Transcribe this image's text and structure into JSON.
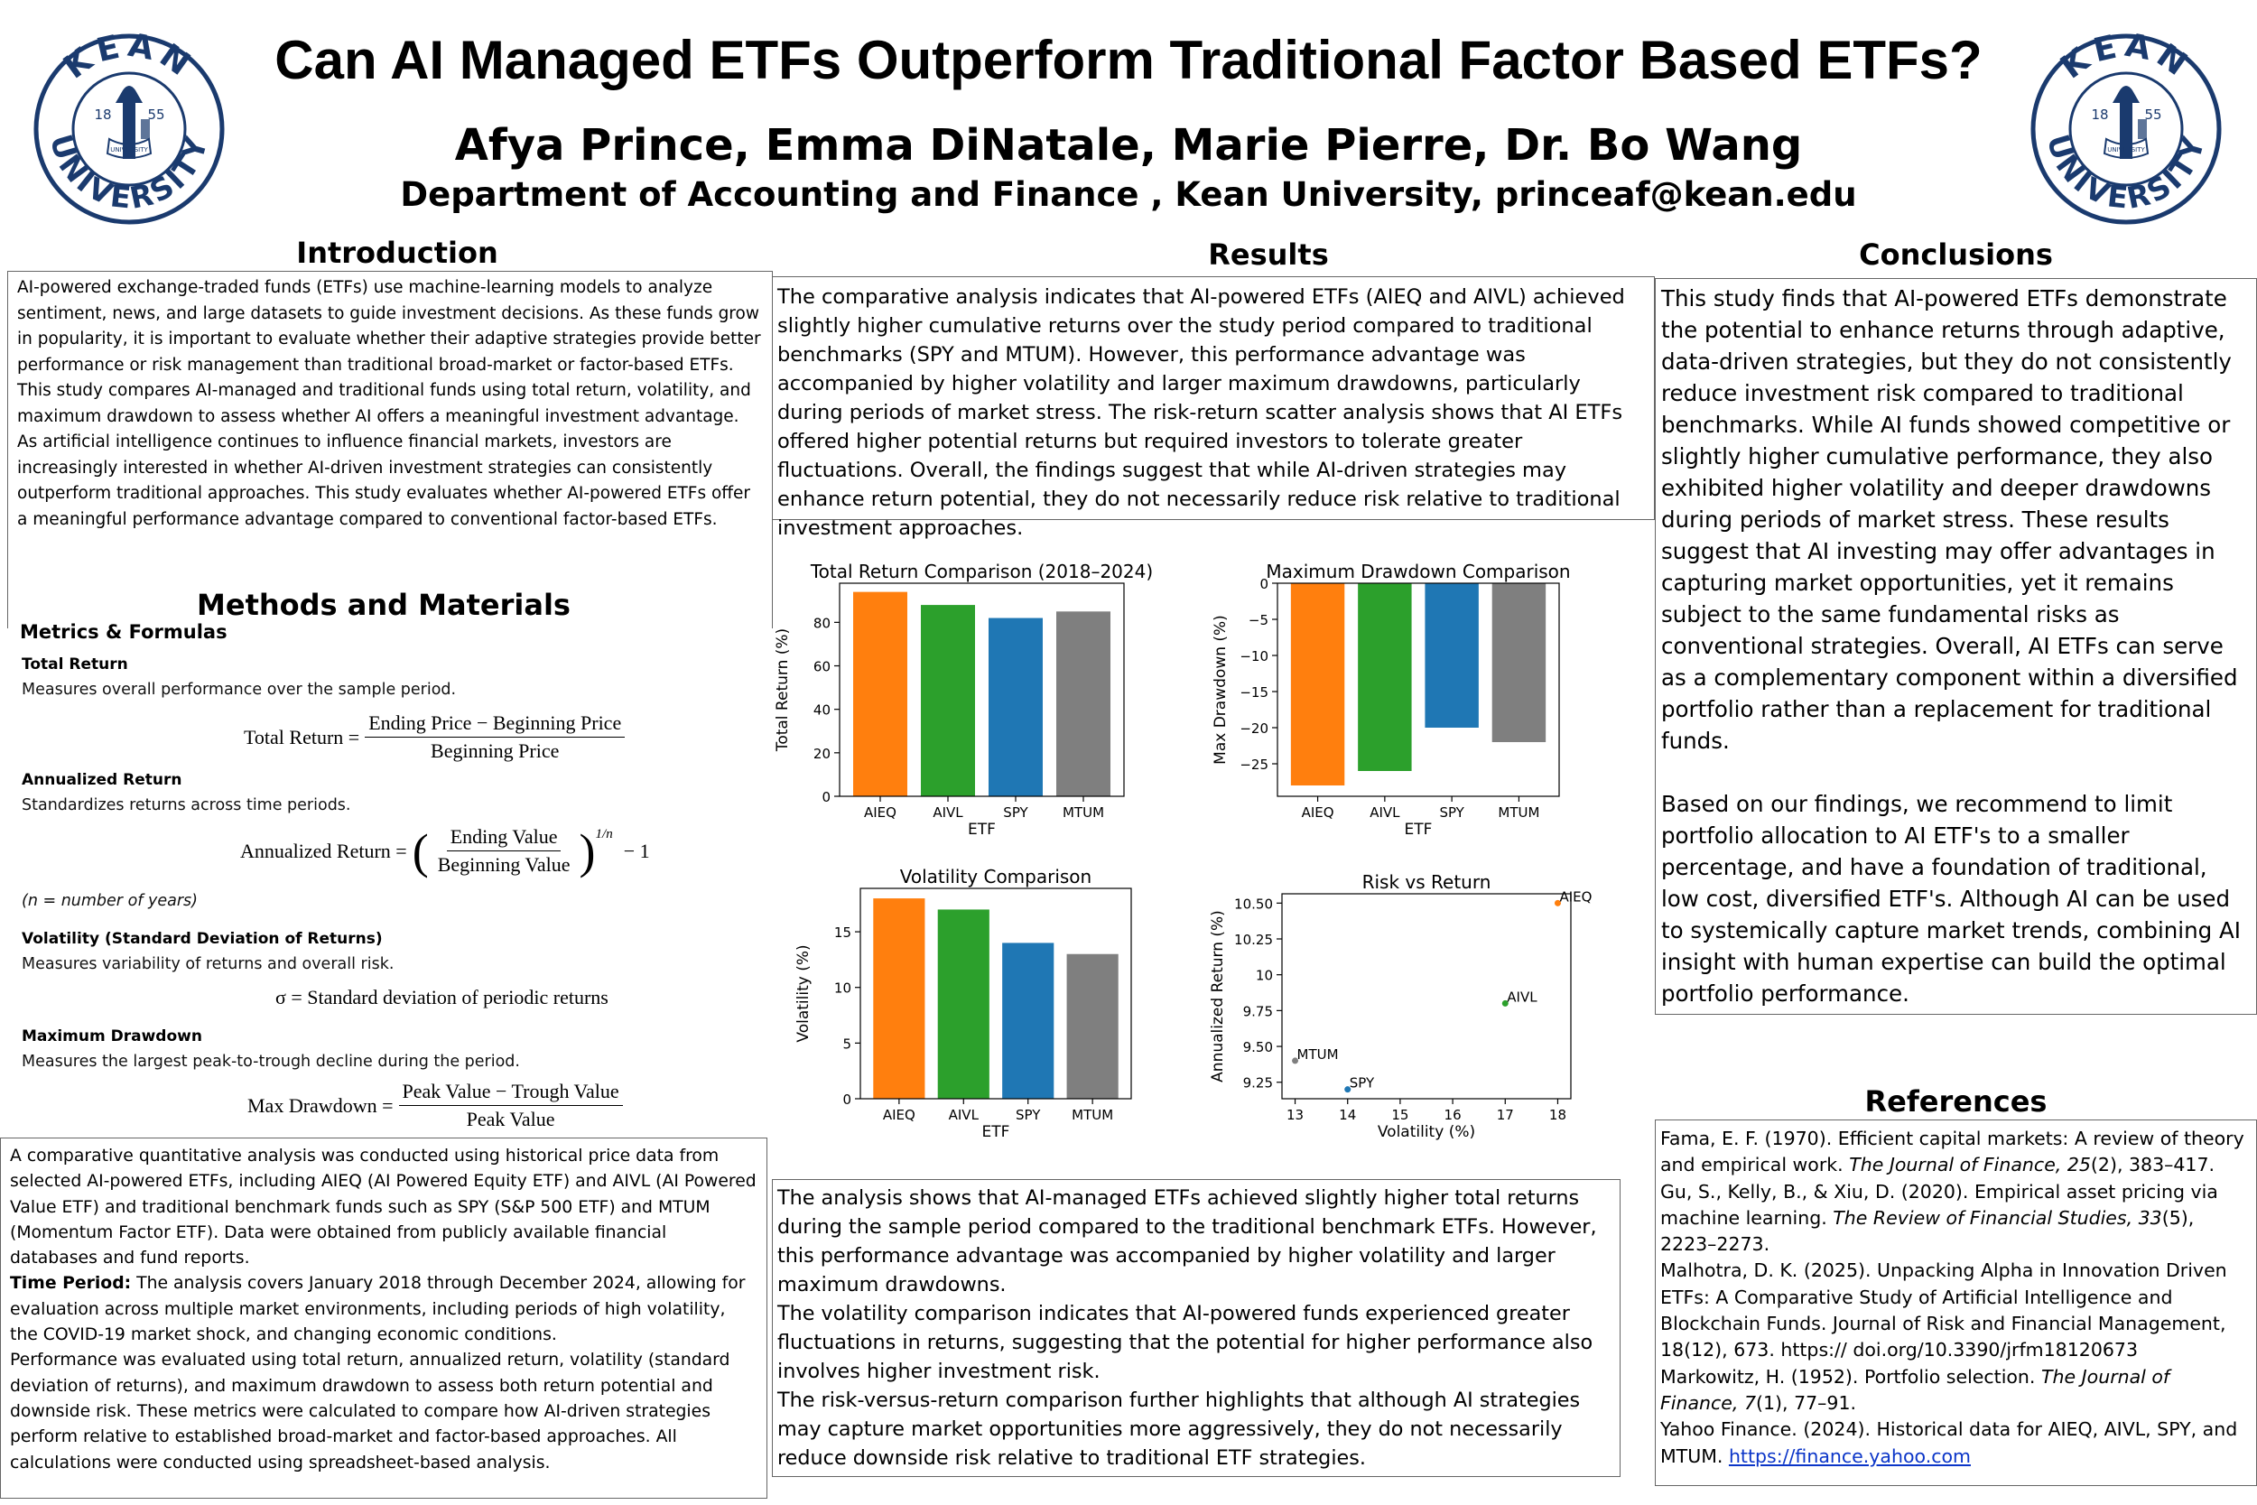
{
  "header": {
    "title": "Can AI Managed ETFs Outperform Traditional Factor Based ETFs?",
    "authors": "Afya Prince,  Emma DiNatale, Marie Pierre, Dr. Bo Wang",
    "affiliation": "Department of Accounting and Finance , Kean University, princeaf@kean.edu",
    "logo": {
      "top": "KEAN",
      "bottom": "UNIVERSITY",
      "year_left": "18",
      "year_right": "55",
      "ribbon": "UNIVERSITY",
      "color": "#1a3a6e"
    }
  },
  "introduction": {
    "title": "Introduction",
    "text": "AI-powered exchange-traded funds (ETFs) use machine-learning models to analyze sentiment, news, and large datasets to guide investment decisions. As these funds grow in popularity, it is important to evaluate whether their adaptive strategies provide better performance or risk management than traditional broad-market or factor-based ETFs. This study compares AI-managed and traditional funds using total return, volatility, and maximum drawdown to assess whether AI offers a meaningful investment advantage.  As artificial intelligence continues to influence financial markets, investors are increasingly interested in whether AI-driven investment strategies can consistently outperform traditional approaches. This study evaluates whether AI-powered ETFs offer a meaningful performance advantage compared to conventional factor-based ETFs."
  },
  "methods": {
    "title": "Methods and Materials",
    "metrics_heading": "Metrics & Formulas",
    "total_return": {
      "heading": "Total Return",
      "desc": "Measures overall performance over the sample period.",
      "lhs": "Total Return =",
      "num": "Ending Price − Beginning Price",
      "den": "Beginning Price"
    },
    "annualized": {
      "heading": "Annualized Return",
      "desc": "Standardizes returns across time periods.",
      "lhs": "Annualized Return =",
      "num": "Ending Value",
      "den": "Beginning Value",
      "exp": "1/n",
      "tail": "− 1",
      "note": "(n = number of years)"
    },
    "volatility": {
      "heading": "Volatility (Standard Deviation of Returns)",
      "desc": "Measures variability of returns and overall risk.",
      "eq": "σ = Standard deviation of periodic returns"
    },
    "drawdown": {
      "heading": "Maximum Drawdown",
      "desc": "Measures the largest peak-to-trough decline during the period.",
      "lhs": "Max Drawdown =",
      "num": "Peak Value − Trough Value",
      "den": "Peak Value"
    },
    "p1": "A comparative quantitative analysis was conducted using historical price data from selected AI-powered ETFs, including AIEQ (AI Powered Equity ETF) and AIVL (AI Powered Value ETF) and traditional benchmark funds such as SPY (S&P 500 ETF) and MTUM (Momentum Factor ETF). Data were obtained from publicly available financial databases and fund reports.",
    "time_label": "Time Period:",
    "p2": " The analysis covers January 2018 through December 2024, allowing for evaluation across multiple market environments, including periods of high volatility, the COVID-19 market shock, and changing economic conditions.",
    "p3": "Performance was evaluated using total return, annualized return, volatility (standard deviation of returns), and maximum drawdown to assess both return potential and downside risk. These metrics were calculated to compare how AI-driven strategies perform relative to established broad-market and factor-based approaches. All calculations were conducted using spreadsheet-based analysis."
  },
  "results": {
    "title": "Results",
    "text_top": "The comparative analysis indicates that AI-powered ETFs (AIEQ and AIVL) achieved slightly higher cumulative returns over the study period compared to traditional benchmarks (SPY and MTUM). However, this performance advantage was accompanied by higher volatility and larger maximum drawdowns, particularly during periods of market stress. The risk-return scatter analysis shows that AI ETFs offered higher potential returns but required investors to tolerate greater fluctuations. Overall, the findings suggest that while AI-driven strategies may enhance return potential, they do not necessarily reduce risk relative to traditional investment approaches.",
    "text_bottom_1": "The analysis shows that AI-managed ETFs achieved slightly higher total returns during the sample period compared to the traditional benchmark ETFs. However, this performance advantage was accompanied by higher volatility and larger maximum drawdowns.",
    "text_bottom_2": "The volatility comparison indicates that AI-powered funds experienced greater fluctuations in returns, suggesting that the potential for higher performance also involves higher investment risk.",
    "text_bottom_3": "The risk-versus-return comparison further highlights that although AI strategies may capture market opportunities more aggressively, they do not necessarily reduce downside risk relative to traditional ETF strategies."
  },
  "conclusions": {
    "title": "Conclusions",
    "p1": "This study finds that AI-powered ETFs demonstrate the potential to enhance returns through adaptive, data-driven strategies, but they do not consistently reduce investment risk compared to traditional benchmarks. While AI funds showed competitive or slightly higher cumulative performance, they also exhibited higher volatility and deeper drawdowns during periods of market stress. These results suggest that AI investing may offer advantages in capturing market opportunities, yet it remains subject to the same fundamental risks as conventional strategies. Overall, AI ETFs can serve as a complementary component within a diversified portfolio rather than a replacement for traditional funds.",
    "p2": "Based on our findings, we recommend to limit portfolio allocation to AI ETF's to a smaller percentage, and have a foundation of traditional, low cost, diversified ETF's. Although AI can be used to systemically capture market trends, combining AI insight with human expertise can build the optimal portfolio performance."
  },
  "references": {
    "title": "References",
    "r1a": "Fama, E. F. (1970). Efficient capital markets: A review of theory and empirical work. ",
    "r1b": "The Journal of Finance, 25",
    "r1c": "(2), 383–417.",
    "r2a": "Gu, S., Kelly, B., & Xiu, D. (2020). Empirical asset pricing via machine learning. ",
    "r2b": "The Review of Financial Studies, 33",
    "r2c": "(5), 2223–2273.",
    "r3": "Malhotra, D. K. (2025). Unpacking Alpha in Innovation Driven ETFs: A Comparative Study of Artificial Intelligence and Blockchain Funds. Journal of Risk and Financial Management, 18(12), 673. https:// doi.org/10.3390/jrfm18120673",
    "r4a": "Markowitz, H. (1952). Portfolio selection. ",
    "r4b": "The Journal of Finance, 7",
    "r4c": "(1), 77–91.",
    "r5a": "Yahoo Finance. (2024). Historical data for AIEQ, AIVL, SPY, and MTUM. ",
    "r5b": "https://finance.yahoo.com"
  },
  "colors": {
    "AIEQ": "#ff7f0e",
    "AIVL": "#2ca02c",
    "SPY": "#1f77b4",
    "MTUM": "#7f7f7f"
  },
  "chart_data": [
    {
      "type": "bar",
      "title": "Total Return Comparison (2018–2024)",
      "xlabel": "ETF",
      "ylabel": "Total Return (%)",
      "categories": [
        "AIEQ",
        "AIVL",
        "SPY",
        "MTUM"
      ],
      "values": [
        94,
        88,
        82,
        85
      ],
      "ylim": [
        0,
        98
      ],
      "yticks": [
        0,
        20,
        40,
        60,
        80
      ]
    },
    {
      "type": "bar",
      "title": "Maximum Drawdown Comparison",
      "xlabel": "ETF",
      "ylabel": "Max Drawdown (%)",
      "categories": [
        "AIEQ",
        "AIVL",
        "SPY",
        "MTUM"
      ],
      "values": [
        -28,
        -26,
        -20,
        -22
      ],
      "ylim": [
        -29.5,
        0
      ],
      "yticks": [
        0,
        -5,
        -10,
        -15,
        -20,
        -25
      ]
    },
    {
      "type": "bar",
      "title": "Volatility Comparison",
      "xlabel": "ETF",
      "ylabel": "Volatility (%)",
      "categories": [
        "AIEQ",
        "AIVL",
        "SPY",
        "MTUM"
      ],
      "values": [
        18,
        17,
        14,
        13
      ],
      "ylim": [
        0,
        18.9
      ],
      "yticks": [
        0,
        5,
        10,
        15
      ]
    },
    {
      "type": "scatter",
      "title": "Risk vs Return",
      "xlabel": "Volatility (%)",
      "ylabel": "Annualized Return (%)",
      "points": [
        {
          "label": "AIEQ",
          "x": 18,
          "y": 10.5
        },
        {
          "label": "AIVL",
          "x": 17,
          "y": 9.8
        },
        {
          "label": "SPY",
          "x": 14,
          "y": 9.2
        },
        {
          "label": "MTUM",
          "x": 13,
          "y": 9.4
        }
      ],
      "xlim": [
        12.75,
        18.25
      ],
      "ylim": [
        9.135,
        10.565
      ],
      "xticks": [
        13,
        14,
        15,
        16,
        17,
        18
      ],
      "yticks": [
        9.25,
        9.5,
        9.75,
        10.0,
        10.25,
        10.5
      ]
    }
  ]
}
